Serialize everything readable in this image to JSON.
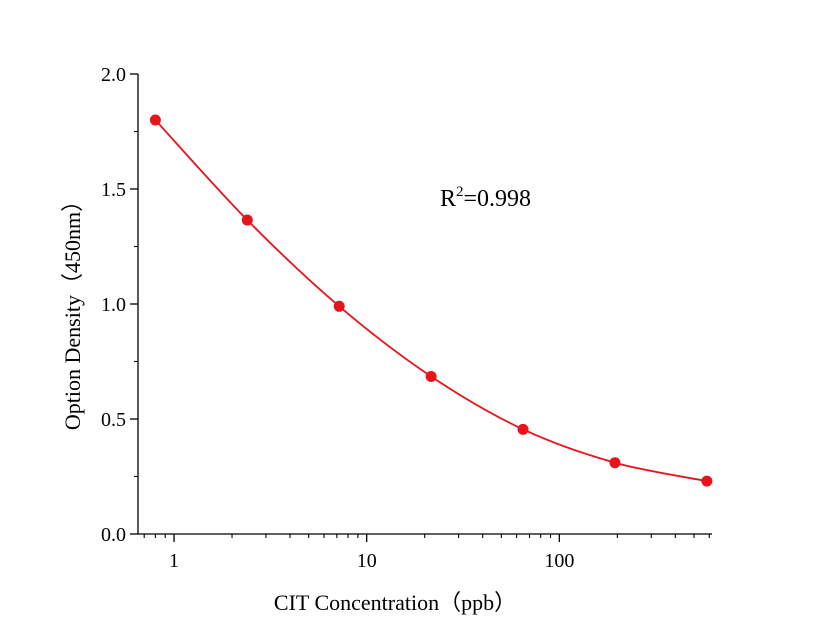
{
  "chart_data": {
    "type": "scatter",
    "title": "",
    "xlabel": "CIT Concentration（ppb）",
    "ylabel": "Option Density（450nm）",
    "x_scale": "log",
    "xlim": [
      0.65,
      620
    ],
    "ylim": [
      0,
      2.0
    ],
    "x_ticks": [
      1,
      10,
      100
    ],
    "x_tick_labels": [
      "1",
      "10",
      "100"
    ],
    "y_ticks": [
      0,
      0.5,
      1.0,
      1.5,
      2.0
    ],
    "y_tick_labels": [
      "0.0",
      "0.5",
      "1.0",
      "1.5",
      "2.0"
    ],
    "grid": false,
    "legend": "none",
    "series": [
      {
        "color": "#e8141c",
        "x": [
          0.8,
          2.4,
          7.2,
          21.6,
          64.8,
          194.4,
          583.2
        ],
        "y": [
          1.8,
          1.365,
          0.99,
          0.685,
          0.455,
          0.31,
          0.23
        ],
        "fit_curve": true
      }
    ],
    "annotation": {
      "base": "R",
      "sup": "2",
      "rest": "=0.998"
    }
  }
}
